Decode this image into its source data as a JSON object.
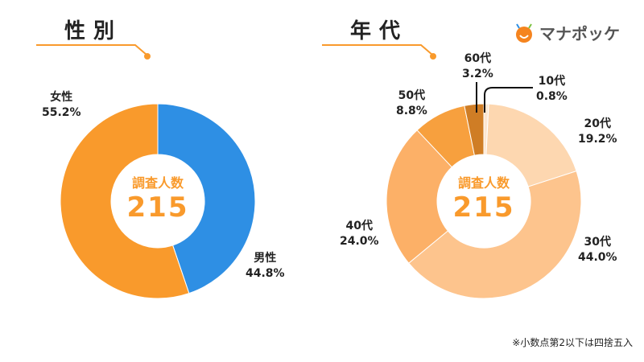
{
  "colors": {
    "accent": "#f99a2c"
  },
  "logo": {
    "text": "マナポッケ"
  },
  "note": "※小数点第2以下は四捨五入",
  "chart_data": [
    {
      "type": "pie",
      "title": "性別",
      "center_label": "調査人数",
      "center_value": "215",
      "categories": [
        "男性",
        "女性"
      ],
      "values": [
        44.8,
        55.2
      ],
      "value_labels": [
        "44.8%",
        "55.2%"
      ],
      "colors": [
        "#2e8fe4",
        "#f99a2c"
      ]
    },
    {
      "type": "pie",
      "title": "年代",
      "center_label": "調査人数",
      "center_value": "215",
      "categories": [
        "10代",
        "20代",
        "30代",
        "40代",
        "50代",
        "60代"
      ],
      "values": [
        0.8,
        19.2,
        44.0,
        24.0,
        8.8,
        3.2
      ],
      "value_labels": [
        "0.8%",
        "19.2%",
        "44.0%",
        "24.0%",
        "8.8%",
        "3.2%"
      ],
      "colors": [
        "#fde6d0",
        "#fdd7b0",
        "#fdc48d",
        "#fcb067",
        "#f7a03e",
        "#cf7d25"
      ]
    }
  ]
}
